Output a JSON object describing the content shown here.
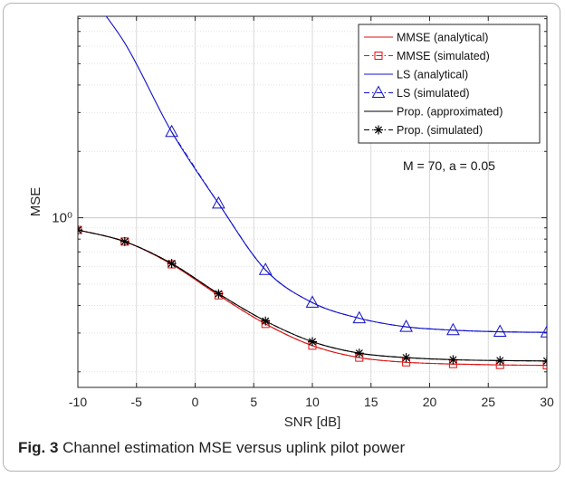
{
  "caption": {
    "label": "Fig. 3",
    "text": "Channel estimation MSE versus uplink pilot power"
  },
  "chart_data": {
    "type": "line",
    "xlabel": "SNR [dB]",
    "ylabel": "MSE",
    "xlim": [
      -10,
      30
    ],
    "ylim": [
      0.17,
      8.2
    ],
    "yscale": "log",
    "grid": true,
    "x_ticks": [
      -10,
      -5,
      0,
      5,
      10,
      15,
      20,
      25,
      30
    ],
    "x_tick_labels": [
      "-10",
      "-5",
      "0",
      "5",
      "10",
      "15",
      "20",
      "25",
      "30"
    ],
    "y_ticks": [
      1
    ],
    "y_tick_labels": [
      "10⁰"
    ],
    "legend_position": "top-right",
    "annotation": "M = 70, a = 0.05",
    "series": [
      {
        "name": "MMSE (analytical)",
        "color": "#dd1111",
        "dash": "solid",
        "marker": "none",
        "x": [
          -10,
          -6,
          -2,
          2,
          6,
          10,
          14,
          18,
          22,
          26,
          30
        ],
        "y": [
          0.88,
          0.78,
          0.615,
          0.445,
          0.33,
          0.263,
          0.232,
          0.221,
          0.217,
          0.215,
          0.214
        ]
      },
      {
        "name": "MMSE (simulated)",
        "color": "#dd1111",
        "dash": "dashdot",
        "marker": "square",
        "x": [
          -10,
          -6,
          -2,
          2,
          6,
          10,
          14,
          18,
          22,
          26,
          30
        ],
        "y": [
          0.88,
          0.78,
          0.615,
          0.445,
          0.33,
          0.263,
          0.232,
          0.221,
          0.217,
          0.215,
          0.214
        ]
      },
      {
        "name": "LS (analytical)",
        "color": "#1010cc",
        "dash": "solid",
        "marker": "none",
        "x": [
          -10,
          -6,
          -2,
          2,
          6,
          10,
          14,
          18,
          22,
          26,
          30
        ],
        "y": [
          12.0,
          6.2,
          2.45,
          1.16,
          0.58,
          0.412,
          0.35,
          0.32,
          0.309,
          0.304,
          0.302
        ]
      },
      {
        "name": "LS (simulated)",
        "color": "#1010cc",
        "dash": "dashdot",
        "marker": "triangle",
        "x": [
          -2,
          2,
          6,
          10,
          14,
          18,
          22,
          26,
          30
        ],
        "y": [
          2.45,
          1.16,
          0.58,
          0.412,
          0.35,
          0.32,
          0.309,
          0.304,
          0.302
        ]
      },
      {
        "name": "Prop. (approximated)",
        "color": "#000000",
        "dash": "solid",
        "marker": "none",
        "x": [
          -10,
          -6,
          -2,
          2,
          6,
          10,
          14,
          18,
          22,
          26,
          30
        ],
        "y": [
          0.88,
          0.78,
          0.62,
          0.452,
          0.34,
          0.274,
          0.243,
          0.232,
          0.227,
          0.225,
          0.224
        ]
      },
      {
        "name": "Prop. (simulated)",
        "color": "#000000",
        "dash": "dashdot",
        "marker": "star",
        "x": [
          -10,
          -6,
          -2,
          2,
          6,
          10,
          14,
          18,
          22,
          26,
          30
        ],
        "y": [
          0.88,
          0.78,
          0.62,
          0.452,
          0.34,
          0.274,
          0.243,
          0.232,
          0.227,
          0.225,
          0.224
        ]
      }
    ]
  }
}
